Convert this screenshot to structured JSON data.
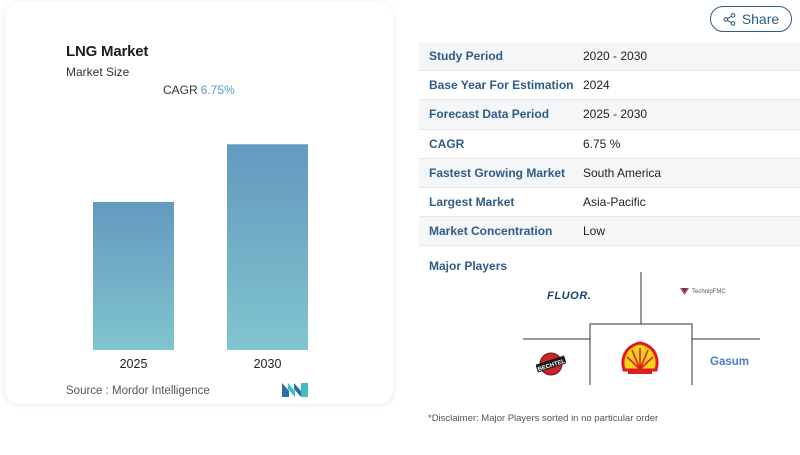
{
  "chart_card": {
    "title": "LNG Market",
    "subtitle": "Market Size",
    "cagr_label": "CAGR",
    "cagr_value": "6.75%",
    "source_text": "Source : Mordor Intelligence"
  },
  "chart_data": {
    "type": "bar",
    "categories": [
      "2025",
      "2030"
    ],
    "values": [
      1.0,
      1.39
    ],
    "title": "LNG Market",
    "subtitle": "Market Size",
    "annotations": [
      "CAGR 6.75%"
    ],
    "ylim": [
      0,
      1.6
    ],
    "grid": false,
    "legend": "none",
    "bar_color_top": "#6499bf",
    "bar_color_bottom": "#80c5cf"
  },
  "share": {
    "label": "Share"
  },
  "info_table": {
    "rows": [
      {
        "label": "Study Period",
        "value": "2020 - 2030"
      },
      {
        "label": "Base Year For Estimation",
        "value": "2024"
      },
      {
        "label": "Forecast Data Period",
        "value": "2025 - 2030"
      },
      {
        "label": "CAGR",
        "value": "6.75 %"
      },
      {
        "label": "Fastest Growing Market",
        "value": "South America"
      },
      {
        "label": "Largest Market",
        "value": "Asia-Pacific"
      },
      {
        "label": "Market Concentration",
        "value": "Low"
      }
    ]
  },
  "major_players": {
    "title": "Major Players",
    "logos": {
      "fluor": "FLUOR.",
      "technip": "TechnipFMC",
      "bechtel": "BECHTEL",
      "gasum": "Gasum"
    }
  },
  "disclaimer": "*Disclaimer: Major Players sorted in no particular order",
  "colors": {
    "accent": "#2f5c86",
    "cagr_value": "#5a9ac4",
    "row_stripe": "#f4f6f8"
  }
}
